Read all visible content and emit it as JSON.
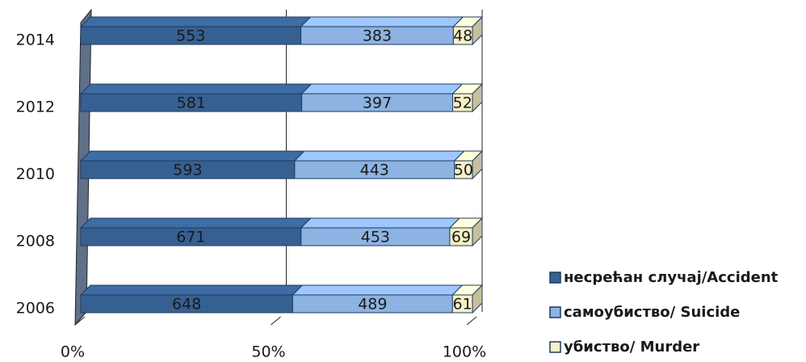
{
  "chart_data": {
    "type": "stacked-bar-percent",
    "categories": [
      "2014",
      "2012",
      "2010",
      "2008",
      "2006"
    ],
    "series": [
      {
        "name": "несрећан случај/Accident",
        "color": "#376092",
        "values": [
          553,
          581,
          593,
          671,
          648
        ]
      },
      {
        "name": "самоубиство/ Suicide",
        "color": "#8db3e2",
        "values": [
          383,
          397,
          443,
          453,
          489
        ]
      },
      {
        "name": "убиство/ Murder",
        "color": "#f7f0c6",
        "values": [
          48,
          52,
          50,
          69,
          61
        ]
      }
    ],
    "xlim": [
      0,
      100
    ],
    "xticks": [
      {
        "value": 0,
        "label": "0%"
      },
      {
        "value": 50,
        "label": "50%"
      },
      {
        "value": 100,
        "label": "100%"
      }
    ],
    "grid": true
  }
}
